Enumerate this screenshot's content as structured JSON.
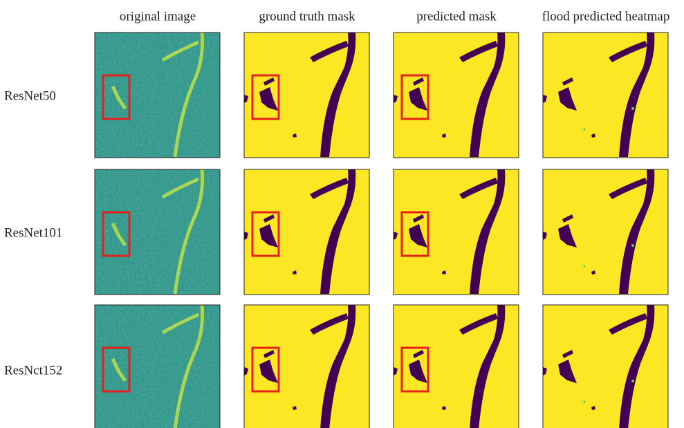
{
  "columns": [
    "original image",
    "ground truth mask",
    "predicted mask",
    "flood predicted heatmap"
  ],
  "rows": [
    "ResNet50",
    "ResNet101",
    "ResNct152"
  ]
}
